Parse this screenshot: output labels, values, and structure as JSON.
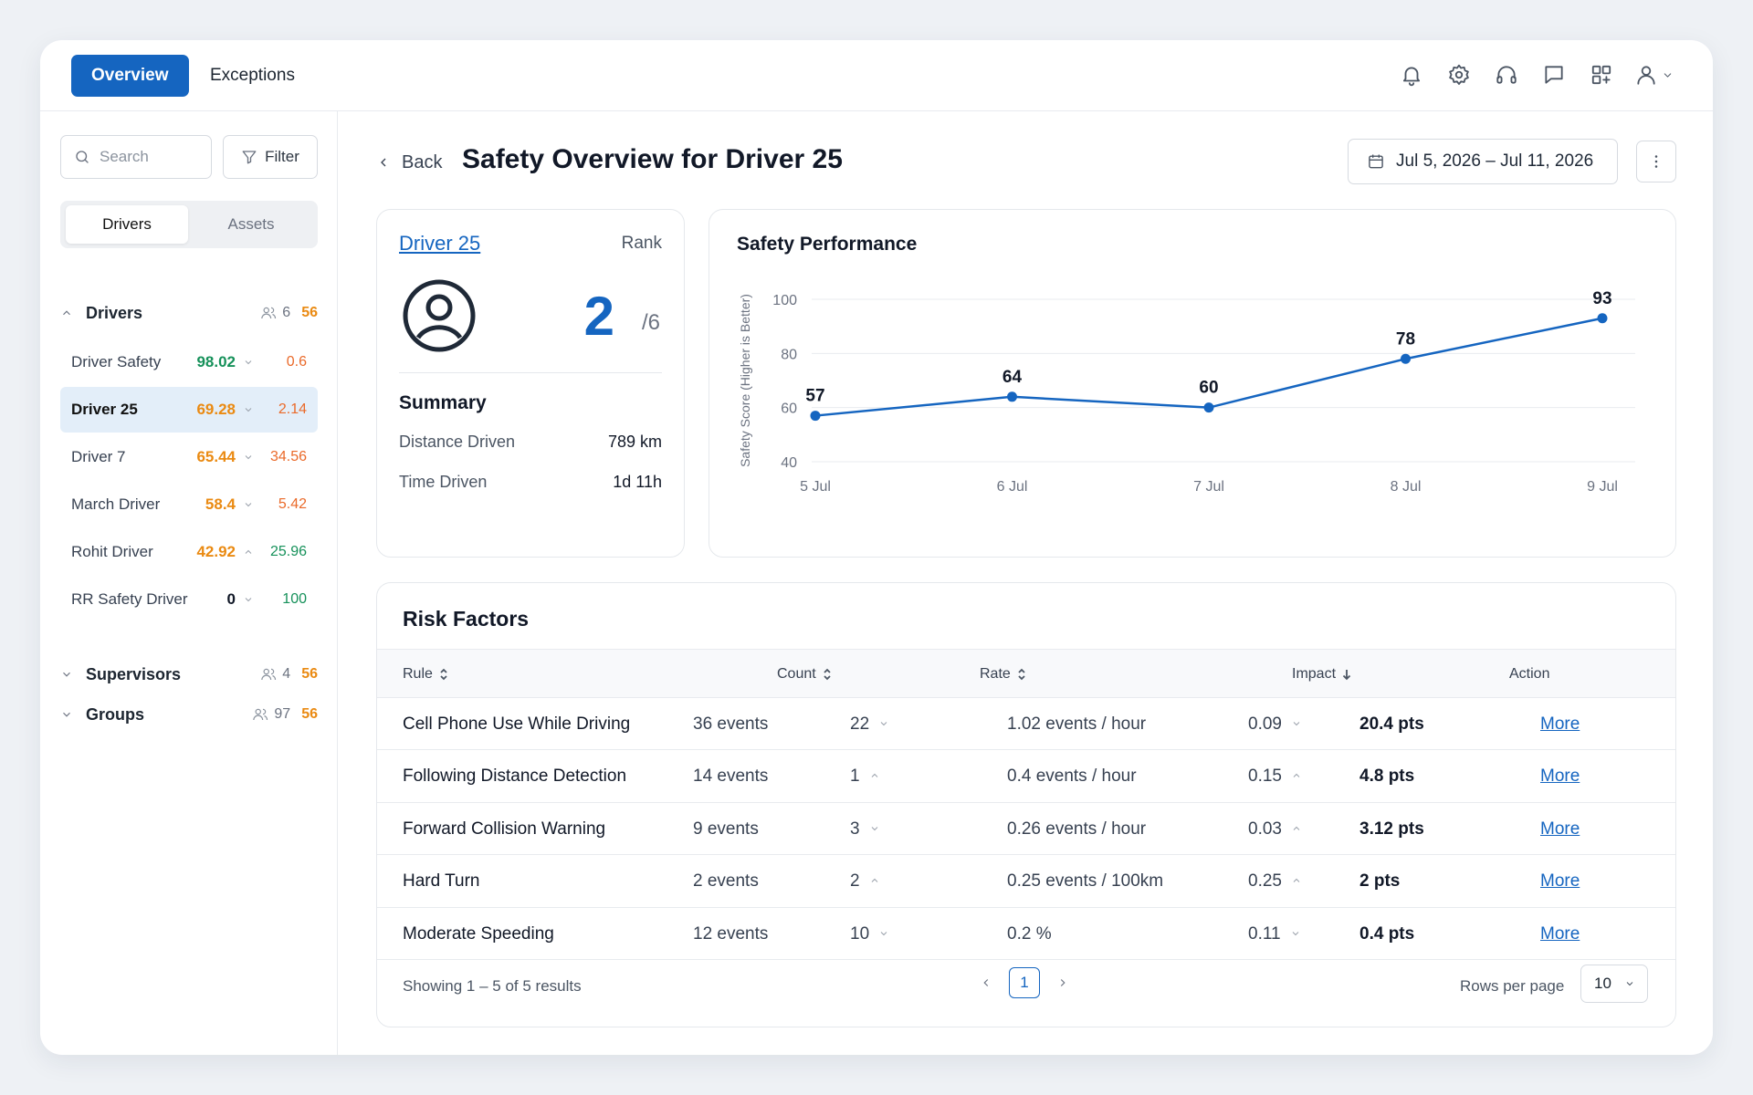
{
  "nav": {
    "tabs": [
      {
        "label": "Overview"
      },
      {
        "label": "Exceptions"
      }
    ]
  },
  "sidebar": {
    "search_placeholder": "Search",
    "filter_label": "Filter",
    "segments": [
      "Drivers",
      "Assets"
    ],
    "groups": [
      {
        "label": "Drivers",
        "count": "6",
        "num": "56"
      },
      {
        "label": "Supervisors",
        "count": "4",
        "num": "56"
      },
      {
        "label": "Groups",
        "count": "97",
        "num": "56"
      }
    ],
    "drivers": [
      {
        "name": "Driver Safety",
        "score": "98.02",
        "trend": "down",
        "value": "0.6",
        "score_color": "#16915a",
        "value_color": "#ea6a2a"
      },
      {
        "name": "Driver 25",
        "score": "69.28",
        "trend": "down",
        "value": "2.14",
        "score_color": "#ea8a12",
        "value_color": "#ea6a2a"
      },
      {
        "name": "Driver 7",
        "score": "65.44",
        "trend": "down",
        "value": "34.56",
        "score_color": "#ea8a12",
        "value_color": "#ea6a2a"
      },
      {
        "name": "March Driver",
        "score": "58.4",
        "trend": "down",
        "value": "5.42",
        "score_color": "#ea8a12",
        "value_color": "#ea6a2a"
      },
      {
        "name": "Rohit Driver",
        "score": "42.92",
        "trend": "up",
        "value": "25.96",
        "score_color": "#ea8a12",
        "value_color": "#16915a"
      },
      {
        "name": "RR Safety Driver",
        "score": "0",
        "trend": "down",
        "value": "100",
        "score_color": "#111827",
        "value_color": "#16915a"
      }
    ]
  },
  "header": {
    "back_label": "Back",
    "title": "Safety Overview for Driver 25",
    "date_range": "Jul 5, 2026 – Jul 11, 2026"
  },
  "driver_card": {
    "name": "Driver 25",
    "rank_label": "Rank",
    "rank": "2",
    "rank_of": "/6",
    "summary_title": "Summary",
    "summary": [
      {
        "label": "Distance Driven",
        "value": "789 km"
      },
      {
        "label": "Time Driven",
        "value": "1d 11h"
      }
    ]
  },
  "chart_data": {
    "type": "line",
    "title": "Safety Performance",
    "ylabel": "Safety Score (Higher is Better)",
    "xlabel": "",
    "categories": [
      "5 Jul",
      "6 Jul",
      "7 Jul",
      "8 Jul",
      "9 Jul"
    ],
    "values": [
      57,
      64,
      60,
      78,
      93
    ],
    "ylim": [
      40,
      100
    ],
    "yticks": [
      40,
      60,
      80,
      100
    ],
    "grid": true,
    "color": "#1565c0"
  },
  "risk": {
    "title": "Risk Factors",
    "columns": {
      "rule": "Rule",
      "count": "Count",
      "rate": "Rate",
      "impact": "Impact",
      "action": "Action"
    },
    "rows": [
      {
        "rule": "Cell Phone Use While Driving",
        "count": "36 events",
        "count_change": "22",
        "count_trend": "down",
        "rate": "1.02 events / hour",
        "rate_change": "0.09",
        "rate_trend": "down",
        "impact": "20.4 pts",
        "action": "More"
      },
      {
        "rule": "Following Distance Detection",
        "count": "14 events",
        "count_change": "1",
        "count_trend": "up",
        "rate": "0.4 events / hour",
        "rate_change": "0.15",
        "rate_trend": "up",
        "impact": "4.8 pts",
        "action": "More"
      },
      {
        "rule": "Forward Collision Warning",
        "count": "9 events",
        "count_change": "3",
        "count_trend": "down",
        "rate": "0.26 events / hour",
        "rate_change": "0.03",
        "rate_trend": "up",
        "impact": "3.12 pts",
        "action": "More"
      },
      {
        "rule": "Hard Turn",
        "count": "2 events",
        "count_change": "2",
        "count_trend": "up",
        "rate": "0.25 events / 100km",
        "rate_change": "0.25",
        "rate_trend": "up",
        "impact": "2 pts",
        "action": "More"
      },
      {
        "rule": "Moderate Speeding",
        "count": "12 events",
        "count_change": "10",
        "count_trend": "down",
        "rate": "0.2 %",
        "rate_change": "0.11",
        "rate_trend": "down",
        "impact": "0.4 pts",
        "action": "More"
      }
    ],
    "showing": "Showing 1 – 5 of 5 results",
    "page": "1",
    "rows_per_page_label": "Rows per page",
    "rows_per_page": "10"
  }
}
